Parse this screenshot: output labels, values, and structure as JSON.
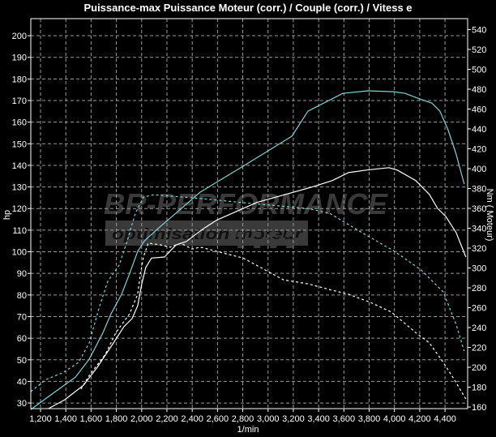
{
  "chart_data": {
    "type": "line",
    "title": "Puissance-max Puissance Moteur (corr.) / Couple (corr.) / Vitess e",
    "xlabel": "1/min",
    "ylabel_left": "hp",
    "ylabel_right": "Nm ( Moteur)",
    "xlim": [
      1123,
      4579
    ],
    "ylim_left": [
      27.4,
      207.9
    ],
    "ylim_right": [
      158.4,
      551
    ],
    "grid": true,
    "x_ticks": [
      "1,200",
      "1,400",
      "1,600",
      "1,800",
      "2,000",
      "2,200",
      "2,400",
      "2,600",
      "2,800",
      "3,000",
      "3,200",
      "3,400",
      "3,600",
      "3,800",
      "4,000",
      "4,200",
      "4,400"
    ],
    "x_tick_values": [
      1200,
      1400,
      1600,
      1800,
      2000,
      2200,
      2400,
      2600,
      2800,
      3000,
      3200,
      3400,
      3600,
      3800,
      4000,
      4200,
      4400
    ],
    "y_left_ticks": [
      30,
      40,
      50,
      60,
      70,
      80,
      90,
      100,
      110,
      120,
      130,
      140,
      150,
      160,
      170,
      180,
      190,
      200
    ],
    "y_right_ticks": [
      160,
      180,
      200,
      220,
      240,
      260,
      280,
      300,
      320,
      340,
      360,
      380,
      400,
      420,
      440,
      460,
      480,
      500,
      520,
      540
    ],
    "series": [
      {
        "axis": "left",
        "color": "#7fd4d4",
        "dash": false,
        "x": [
          1123,
          1283,
          1476,
          1585,
          1694,
          1758,
          1841,
          1905,
          1969,
          2021,
          2142,
          2270,
          2463,
          2803,
          3188,
          3316,
          3591,
          3790,
          3995,
          4085,
          4200,
          4296,
          4360,
          4424,
          4488,
          4552
        ],
        "y": [
          27,
          33.8,
          42,
          50.3,
          62.6,
          71.3,
          80.3,
          90,
          100.2,
          105,
          111.4,
          117.8,
          127.6,
          139.6,
          153.5,
          165.1,
          173.3,
          174.5,
          174.1,
          173.3,
          170.7,
          168.8,
          165.1,
          156.5,
          145.2,
          131.3
        ]
      },
      {
        "axis": "left",
        "color": "#7fd4d4",
        "dash": true,
        "x": [
          1123,
          1245,
          1373,
          1501,
          1585,
          1668,
          1732,
          1822,
          1886,
          1950,
          2014,
          2097,
          2482,
          2803,
          3316,
          3488,
          3745,
          4001,
          4213,
          4386,
          4488,
          4552
        ],
        "y": [
          35.3,
          40.9,
          43.9,
          48.8,
          57.8,
          75,
          86.3,
          93.8,
          105,
          117.8,
          125.3,
          126.4,
          124.6,
          122.7,
          120,
          117.8,
          108.8,
          100.2,
          91.5,
          81.4,
          66.4,
          54
        ]
      },
      {
        "axis": "right",
        "color": "#ffffff",
        "dash": false,
        "x": [
          1264,
          1392,
          1540,
          1649,
          1777,
          1860,
          1924,
          1969,
          2001,
          2033,
          2078,
          2181,
          2270,
          2354,
          2482,
          2591,
          2911,
          3360,
          3508,
          3636,
          3783,
          3956,
          4021,
          4168,
          4277,
          4341,
          4405,
          4488,
          4565
        ],
        "y": [
          158.5,
          167.4,
          182,
          200,
          224.5,
          240.9,
          249,
          262,
          284,
          300.6,
          310,
          311,
          323,
          326.7,
          339,
          348,
          366,
          382,
          388,
          396,
          398.6,
          401,
          398.6,
          388,
          374,
          360,
          352,
          335.7,
          311
        ]
      },
      {
        "axis": "right",
        "color": "#ffffff",
        "dash": true,
        "x": [
          1520,
          1585,
          1713,
          1796,
          1905,
          1969,
          1988,
          2014,
          2052,
          2142,
          2225,
          2309,
          2399,
          2463,
          2803,
          3123,
          3316,
          3508,
          3636,
          3809,
          3976,
          4168,
          4277,
          4386,
          4469,
          4565
        ],
        "y": [
          178,
          191.9,
          213,
          235,
          254,
          273.6,
          292,
          311,
          325,
          323.4,
          321,
          325,
          319,
          321,
          310,
          288,
          284,
          277.6,
          273.6,
          265.4,
          255.6,
          235,
          224.5,
          205,
          188.6,
          168
        ]
      }
    ]
  },
  "watermark": {
    "line1": "BR-PERFORMANCE",
    "line2": "optimisation moteur"
  }
}
